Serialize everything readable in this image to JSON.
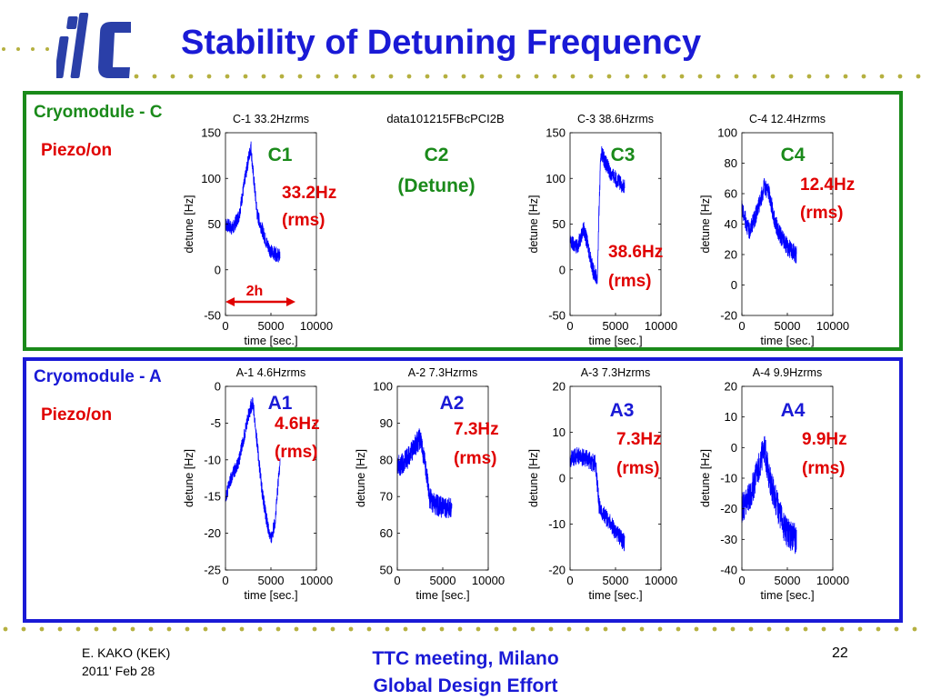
{
  "slide": {
    "title": "Stability of Detuning Frequency",
    "logo_text": "ilc",
    "footer": {
      "author": "E. KAKO (KEK)",
      "date": "2011' Feb 28",
      "meeting_line1": "TTC meeting, Milano",
      "meeting_line2": "Global Design Effort",
      "page_number": "22"
    },
    "sections": [
      {
        "label": "Cryomodule - C",
        "piezo": "Piezo/on",
        "color": "#1a8a1a"
      },
      {
        "label": "Cryomodule - A",
        "piezo": "Piezo/on",
        "color": "#1a1ad6"
      }
    ],
    "c2_label": {
      "name": "C2",
      "note": "(Detune)"
    },
    "data_file_label": "data101215FBcPCI2B",
    "duration_annotation": "2h",
    "colors": {
      "title": "#1a1ad6",
      "green": "#1a8a1a",
      "red": "#e00000",
      "trace": "#0000ff"
    }
  },
  "chart_data": [
    {
      "type": "line",
      "title": "C-1 33.2Hzrms",
      "xlabel": "time [sec.]",
      "ylabel": "detune [Hz]",
      "xlim": [
        0,
        10000
      ],
      "ylim": [
        -50,
        150
      ],
      "xticks": [
        0,
        5000,
        10000
      ],
      "yticks": [
        -50,
        0,
        50,
        100,
        150
      ],
      "tag": "C1",
      "rms_value": "33.2Hz",
      "rms_unit": "(rms)",
      "noise": 8,
      "series": [
        {
          "x": [
            0,
            800,
            1500,
            2000,
            2500,
            2800,
            3000,
            3500,
            4000,
            4500,
            5000,
            6000
          ],
          "y": [
            50,
            45,
            60,
            90,
            120,
            135,
            110,
            60,
            45,
            30,
            20,
            15
          ]
        }
      ]
    },
    {
      "type": "line",
      "title": "C-3 38.6Hzrms",
      "xlabel": "time [sec.]",
      "ylabel": "detune [Hz]",
      "xlim": [
        0,
        10000
      ],
      "ylim": [
        -50,
        150
      ],
      "xticks": [
        0,
        5000,
        10000
      ],
      "yticks": [
        -50,
        0,
        50,
        100,
        150
      ],
      "tag": "C3",
      "rms_value": "38.6Hz",
      "rms_unit": "(rms)",
      "noise": 9,
      "series": [
        {
          "x": [
            0,
            800,
            1500,
            2000,
            2500,
            3000,
            3200,
            3400,
            4000,
            4500,
            5000,
            6000
          ],
          "y": [
            30,
            25,
            45,
            25,
            0,
            -10,
            70,
            130,
            115,
            105,
            100,
            90
          ]
        }
      ]
    },
    {
      "type": "line",
      "title": "C-4 12.4Hzrms",
      "xlabel": "time [sec.]",
      "ylabel": "detune [Hz]",
      "xlim": [
        0,
        10000
      ],
      "ylim": [
        -20,
        100
      ],
      "xticks": [
        0,
        5000,
        10000
      ],
      "yticks": [
        -20,
        0,
        20,
        40,
        60,
        80,
        100
      ],
      "tag": "C4",
      "rms_value": "12.4Hz",
      "rms_unit": "(rms)",
      "noise": 6,
      "series": [
        {
          "x": [
            0,
            800,
            1500,
            2000,
            2500,
            3000,
            3500,
            4000,
            4500,
            5000,
            6000
          ],
          "y": [
            50,
            35,
            45,
            55,
            65,
            60,
            45,
            35,
            30,
            25,
            20
          ]
        }
      ]
    },
    {
      "type": "line",
      "title": "A-1 4.6Hzrms",
      "xlabel": "time [sec.]",
      "ylabel": "detune [Hz]",
      "xlim": [
        0,
        10000
      ],
      "ylim": [
        -25,
        0
      ],
      "xticks": [
        0,
        5000,
        10000
      ],
      "yticks": [
        -25,
        -20,
        -15,
        -10,
        -5,
        0
      ],
      "tag": "A1",
      "rms_value": "4.6Hz",
      "rms_unit": "(rms)",
      "noise": 1,
      "series": [
        {
          "x": [
            0,
            800,
            1500,
            2000,
            2500,
            3000,
            3500,
            4000,
            4500,
            5000,
            5500,
            6000
          ],
          "y": [
            -15,
            -12,
            -10,
            -7,
            -4,
            -2,
            -8,
            -14,
            -18,
            -21,
            -18,
            -10
          ]
        }
      ]
    },
    {
      "type": "line",
      "title": "A-2 7.3Hzrms",
      "xlabel": "time [sec.]",
      "ylabel": "detune [Hz]",
      "xlim": [
        0,
        10000
      ],
      "ylim": [
        50,
        100
      ],
      "xticks": [
        0,
        5000,
        10000
      ],
      "yticks": [
        50,
        60,
        70,
        80,
        90,
        100
      ],
      "tag": "A2",
      "rms_value": "7.3Hz",
      "rms_unit": "(rms)",
      "noise": 3,
      "series": [
        {
          "x": [
            0,
            1000,
            2000,
            2500,
            3000,
            3500,
            4000,
            5000,
            6000
          ],
          "y": [
            78,
            80,
            84,
            86,
            80,
            70,
            68,
            67,
            67
          ]
        }
      ]
    },
    {
      "type": "line",
      "title": "A-3 7.3Hzrms",
      "xlabel": "time [sec.]",
      "ylabel": "detune [Hz]",
      "xlim": [
        0,
        10000
      ],
      "ylim": [
        -20,
        20
      ],
      "xticks": [
        0,
        5000,
        10000
      ],
      "yticks": [
        -20,
        -10,
        0,
        10,
        20
      ],
      "tag": "A3",
      "rms_value": "7.3Hz",
      "rms_unit": "(rms)",
      "noise": 2,
      "series": [
        {
          "x": [
            0,
            1000,
            2000,
            2800,
            3200,
            3800,
            4500,
            5000,
            6000
          ],
          "y": [
            4,
            5,
            4,
            3,
            -6,
            -8,
            -10,
            -12,
            -14
          ]
        }
      ]
    },
    {
      "type": "line",
      "title": "A-4 9.9Hzrms",
      "xlabel": "time [sec.]",
      "ylabel": "detune [Hz]",
      "xlim": [
        0,
        10000
      ],
      "ylim": [
        -40,
        20
      ],
      "xticks": [
        0,
        5000,
        10000
      ],
      "yticks": [
        -40,
        -30,
        -20,
        -10,
        0,
        10,
        20
      ],
      "tag": "A4",
      "rms_value": "9.9Hz",
      "rms_unit": "(rms)",
      "noise": 5,
      "series": [
        {
          "x": [
            0,
            1000,
            2000,
            2500,
            3000,
            3500,
            4000,
            4500,
            5000,
            6000
          ],
          "y": [
            -20,
            -15,
            -5,
            0,
            -10,
            -15,
            -20,
            -25,
            -28,
            -30
          ]
        }
      ]
    }
  ]
}
